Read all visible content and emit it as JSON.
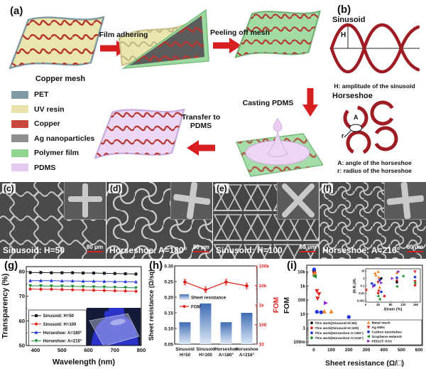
{
  "panels": {
    "a": "(a)",
    "b": "(b)",
    "g": "(g)",
    "h": "(h)",
    "i": "(i)"
  },
  "panel_a": {
    "caption_start": "Copper mesh",
    "steps": [
      "Film adhering",
      "Peeling off mesh",
      "Casting PDMS",
      "Transfer to PDMS"
    ],
    "legend": [
      {
        "label": "PET",
        "color": "#7f9aa3"
      },
      {
        "label": "UV resin",
        "color": "#e9e3ab"
      },
      {
        "label": "Copper",
        "color": "#c7463d"
      },
      {
        "label": "Ag nanoparticles",
        "color": "#8d8d8d"
      },
      {
        "label": "Polymer film",
        "color": "#8fd492"
      },
      {
        "label": "PDMS",
        "color": "#e3c9ef"
      }
    ]
  },
  "panel_b": {
    "sinusoid_title": "Sinusoid",
    "sinusoid_param": "H",
    "sinusoid_caption": "H: amplitude of the sinusoid",
    "horseshoe_title": "Horseshoe",
    "horseshoe_param_a": "A",
    "horseshoe_param_r": "r",
    "horseshoe_caption_a": "A: angle of the horseshoe",
    "horseshoe_caption_r": "r: radius of the horseshoe"
  },
  "sem": [
    {
      "panel": "(c)",
      "caption": "Sinusoid: H=50",
      "scalebar": "80 μm"
    },
    {
      "panel": "(d)",
      "caption": "Horseshoe: A=180°",
      "scalebar": "80 μm"
    },
    {
      "panel": "(e)",
      "caption": "Sinusoid: H=100",
      "scalebar": "80 μm"
    },
    {
      "panel": "(f)",
      "caption": "Horseshoe: A=216°",
      "scalebar": "80 μm"
    }
  ],
  "chart_data": [
    {
      "id": "g",
      "type": "line",
      "xlabel": "Wavelength (nm)",
      "ylabel": "Transparency (%)",
      "xlim": [
        365,
        800
      ],
      "ylim": [
        50,
        82
      ],
      "xticks": [
        400,
        500,
        600,
        700,
        800
      ],
      "yticks": [
        50,
        60,
        70,
        80
      ],
      "x": [
        380,
        420,
        460,
        500,
        540,
        580,
        620,
        660,
        700,
        740,
        780
      ],
      "series": [
        {
          "name": "Sinusoid: H=50",
          "color": "#1a1a1a",
          "marker": "square",
          "values": [
            79.6,
            79.6,
            79.5,
            79.5,
            79.5,
            79.4,
            79.4,
            79.3,
            79.2,
            79.1,
            79.0
          ]
        },
        {
          "name": "Sinusoid: H=100",
          "color": "#e0231f",
          "marker": "circle",
          "values": [
            72.9,
            72.8,
            72.8,
            72.7,
            72.6,
            72.5,
            72.4,
            72.3,
            72.2,
            72.1,
            72.0
          ]
        },
        {
          "name": "Horseshoe: A=180°",
          "color": "#2438d8",
          "marker": "triangle-up",
          "values": [
            76.3,
            76.3,
            76.3,
            76.2,
            76.2,
            76.1,
            76.1,
            76.0,
            75.9,
            75.9,
            75.8
          ]
        },
        {
          "name": "Horseshoe: A=216°",
          "color": "#1d8b33",
          "marker": "triangle-down",
          "values": [
            74.2,
            74.2,
            74.1,
            74.1,
            74.0,
            73.9,
            73.8,
            73.7,
            73.6,
            73.5,
            73.4
          ]
        }
      ],
      "legend_position": "center-left",
      "inset_note": "photo: transparent mesh film held by blue-gloved hand"
    },
    {
      "id": "h",
      "type": "bar+line",
      "categories": [
        [
          "Sinusoid",
          "H=50"
        ],
        [
          "Sinusoid",
          "H=100"
        ],
        [
          "Horseshoe",
          "A=180°"
        ],
        [
          "Horseshoe",
          "A=216°"
        ]
      ],
      "ylabel_left": "Sheet resistance (Ω/sq)",
      "ylabel_right": "FOM",
      "ylim_left": [
        0.05,
        0.3
      ],
      "yticks_left": [
        0.05,
        0.1,
        0.15,
        0.2,
        0.25,
        0.3
      ],
      "ylim_right_log": [
        10,
        100000
      ],
      "yticks_right": [
        [
          10,
          "10"
        ],
        [
          100,
          "100"
        ],
        [
          1000,
          "1k"
        ],
        [
          10000,
          "10k"
        ],
        [
          100000,
          "100k"
        ]
      ],
      "bars": {
        "name": "Sheet resistance",
        "values": [
          0.12,
          0.18,
          0.12,
          0.15
        ],
        "color_top": "#3f6cb4",
        "color_bottom": "#dce8f6"
      },
      "line": {
        "name": "FOM",
        "values": [
          15000,
          6000,
          15000,
          9500
        ],
        "color": "#e0231f"
      }
    },
    {
      "id": "i",
      "type": "scatter",
      "xlabel": "Sheet resistance (Ω/□)",
      "ylabel": "FOM",
      "xlim": [
        -40,
        620
      ],
      "xticks": [
        0,
        100,
        200,
        300,
        400,
        500,
        600
      ],
      "yscale": "log",
      "ylim": [
        0.055,
        30000
      ],
      "yticks": [
        [
          0.1,
          "100m"
        ],
        [
          1,
          "1"
        ],
        [
          10,
          "10"
        ],
        [
          100,
          "100"
        ],
        [
          1000,
          "1k"
        ],
        [
          10000,
          "10k"
        ]
      ],
      "series": [
        {
          "name": "This work(Sinusoid:H=50)",
          "color": "#111111",
          "marker": "circle",
          "points": [
            [
              2,
              12000
            ]
          ]
        },
        {
          "name": "This work(Sinusoid:H=100)",
          "color": "#e0231f",
          "marker": "circle",
          "points": [
            [
              4,
              8500
            ]
          ]
        },
        {
          "name": "This work(Horseshoe:A=180°)",
          "color": "#2438d8",
          "marker": "circle",
          "points": [
            [
              2,
              15000
            ]
          ]
        },
        {
          "name": "This work(Horseshoe:A=216°)",
          "color": "#1d8b33",
          "marker": "circle",
          "points": [
            [
              4,
              6000
            ]
          ]
        },
        {
          "name": "Metal mesh",
          "color": "#f5821f",
          "marker": "triangle-up",
          "points": [
            [
              6,
              7800
            ],
            [
              60,
              15
            ],
            [
              100,
              15
            ]
          ]
        },
        {
          "name": "Ag NWs",
          "color": "#e0231f",
          "marker": "triangle-down",
          "points": [
            [
              18,
              430
            ],
            [
              30,
              260
            ],
            [
              22,
              125
            ]
          ]
        },
        {
          "name": "Carbon nanotubes",
          "color": "#2438d8",
          "marker": "circle",
          "points": [
            [
              18,
              14
            ],
            [
              42,
              13
            ],
            [
              200,
              6
            ]
          ]
        },
        {
          "name": "Graphene-network",
          "color": "#1d8b33",
          "marker": "triangle-left",
          "points": [
            [
              6,
              4800
            ]
          ]
        },
        {
          "name": "PEDOT: PSS",
          "color": "#8a2bd8",
          "marker": "triangle-right",
          "points": [
            [
              68,
              60
            ]
          ]
        }
      ],
      "legend_columns": 2,
      "inset": {
        "xlabel": "Strain (%)",
        "ylabel": "(R-R₀)/R₀",
        "xlim": [
          0,
          175
        ],
        "xticks": [
          0,
          40,
          80,
          120,
          160
        ],
        "yscale": "log",
        "ylim": [
          0.0006,
          20
        ],
        "yticks": [
          [
            10,
            "10"
          ],
          [
            1,
            "1"
          ],
          [
            0.1,
            "0.1"
          ],
          [
            0.01,
            "0.01"
          ],
          [
            0.001,
            "0.001"
          ]
        ],
        "series": [
          {
            "color": "#f5821f",
            "marker": "triangle-up",
            "points": [
              [
                30,
                5
              ],
              [
                33,
                2.5
              ],
              [
                40,
                8
              ],
              [
                42,
                1.3
              ],
              [
                45,
                0.06
              ],
              [
                100,
                6
              ]
            ]
          },
          {
            "color": "#e0231f",
            "marker": "triangle-down",
            "points": [
              [
                2,
                0.025
              ],
              [
                40,
                0.3
              ],
              [
                42,
                0.02
              ],
              [
                158,
                8
              ],
              [
                158,
                0.4
              ]
            ]
          },
          {
            "color": "#2438d8",
            "marker": "circle",
            "points": [
              [
                20,
                0.2
              ],
              [
                28,
                0.12
              ],
              [
                45,
                0.6
              ],
              [
                50,
                0.015
              ],
              [
                100,
                1.2
              ],
              [
                158,
                1.5
              ]
            ]
          },
          {
            "color": "#1d8b33",
            "marker": "triangle-left",
            "points": [
              [
                40,
                0.004
              ],
              [
                45,
                0.0015
              ],
              [
                100,
                0.08
              ],
              [
                120,
                2
              ],
              [
                158,
                0.25
              ]
            ]
          },
          {
            "color": "#8a2bd8",
            "marker": "triangle-right",
            "points": [
              [
                25,
                0.08
              ],
              [
                50,
                0.25
              ],
              [
                85,
                1
              ],
              [
                105,
                8
              ]
            ]
          },
          {
            "color": "#e0231f",
            "marker": "circle",
            "points": [
              [
                40,
                0.01
              ],
              [
                60,
                0.004
              ],
              [
                100,
                0.5
              ],
              [
                158,
                0.12
              ]
            ]
          },
          {
            "color": "#111111",
            "marker": "circle",
            "points": [
              [
                50,
                1
              ],
              [
                100,
                0.3
              ]
            ]
          }
        ]
      }
    }
  ]
}
